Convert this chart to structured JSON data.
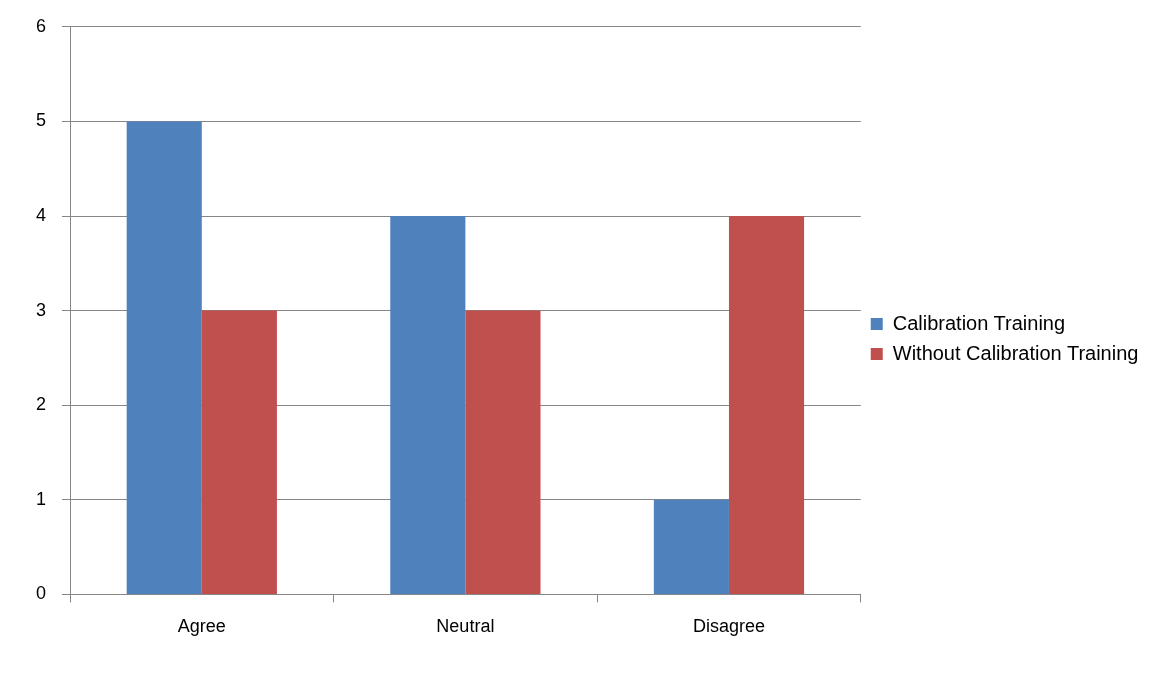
{
  "chart_data": {
    "type": "bar",
    "categories": [
      "Agree",
      "Neutral",
      "Disagree"
    ],
    "series": [
      {
        "name": "Calibration Training",
        "color": "#4f81bd",
        "values": [
          5,
          4,
          1
        ]
      },
      {
        "name": "Without Calibration Training",
        "color": "#c0504d",
        "values": [
          3,
          3,
          4
        ]
      }
    ],
    "ylim": [
      0,
      6
    ],
    "yticks": [
      0,
      1,
      2,
      3,
      4,
      5,
      6
    ],
    "grid": "y",
    "legend": "right"
  }
}
